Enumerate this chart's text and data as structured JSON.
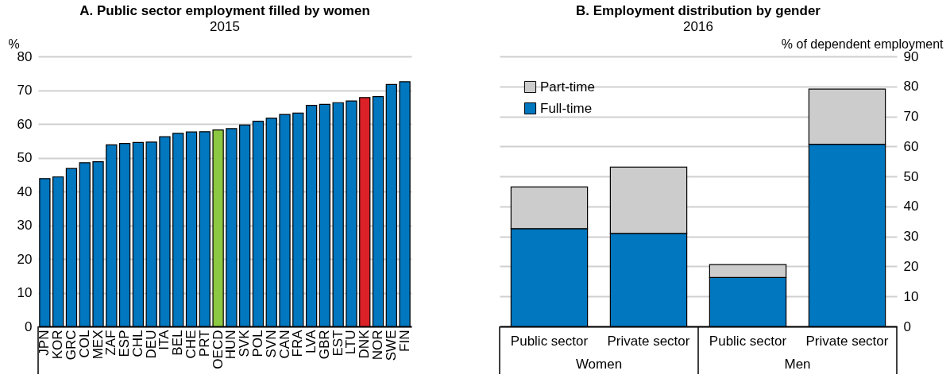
{
  "chart_data": [
    {
      "type": "bar",
      "title": "A. Public sector employment filled by women",
      "subtitle": "2015",
      "ylabel": "%",
      "categories": [
        "JPN",
        "KOR",
        "GRC",
        "COL",
        "MEX",
        "ZAF",
        "ESP",
        "CHL",
        "DEU",
        "ITA",
        "BEL",
        "CHE",
        "PRT",
        "OECD",
        "HUN",
        "SVK",
        "POL",
        "SVN",
        "CAN",
        "FRA",
        "LVA",
        "GBR",
        "EST",
        "LTU",
        "DNK",
        "NOR",
        "SWE",
        "FIN"
      ],
      "values": [
        43.8,
        44.3,
        46.8,
        48.5,
        48.8,
        53.8,
        54.2,
        54.5,
        54.6,
        56.2,
        57.2,
        57.6,
        57.7,
        58.2,
        58.6,
        59.7,
        60.8,
        61.7,
        62.8,
        63.2,
        65.5,
        65.8,
        66.3,
        66.8,
        67.8,
        68.1,
        71.7,
        72.5
      ],
      "colors": [
        "#0077bf",
        "#0077bf",
        "#0077bf",
        "#0077bf",
        "#0077bf",
        "#0077bf",
        "#0077bf",
        "#0077bf",
        "#0077bf",
        "#0077bf",
        "#0077bf",
        "#0077bf",
        "#0077bf",
        "#8cc841",
        "#0077bf",
        "#0077bf",
        "#0077bf",
        "#0077bf",
        "#0077bf",
        "#0077bf",
        "#0077bf",
        "#0077bf",
        "#0077bf",
        "#0077bf",
        "#da2128",
        "#0077bf",
        "#0077bf",
        "#0077bf"
      ],
      "ylim": [
        0,
        80
      ],
      "yticks": [
        0,
        10,
        20,
        30,
        40,
        50,
        60,
        70,
        80
      ],
      "grid": "y",
      "legend": false
    },
    {
      "type": "bar",
      "title": "B. Employment distribution by gender",
      "subtitle": "2016",
      "ylabel": "% of dependent employment",
      "stacked": true,
      "categories": [
        "Public sector",
        "Private sector",
        "Public sector",
        "Private sector"
      ],
      "series": [
        {
          "name": "Full-time",
          "color": "#0077bf",
          "values": [
            32.6,
            31.0,
            16.3,
            60.7
          ]
        },
        {
          "name": "Part-time",
          "color": "#cccccc",
          "values": [
            13.9,
            22.1,
            4.3,
            18.4
          ]
        }
      ],
      "ylim": [
        0,
        90
      ],
      "yticks": [
        0,
        10,
        20,
        30,
        40,
        50,
        60,
        70,
        80,
        90
      ],
      "grid": "y",
      "legend": "top left",
      "annotations": [
        "Women",
        "Men"
      ]
    }
  ]
}
